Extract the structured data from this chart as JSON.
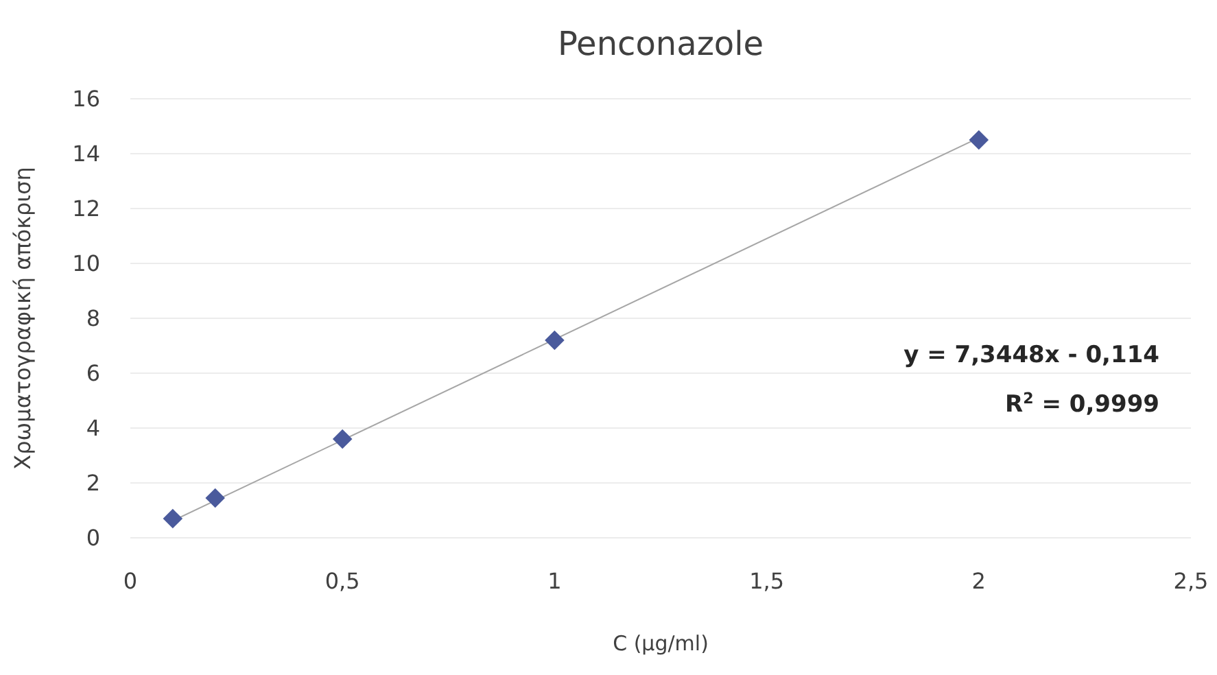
{
  "chart_data": {
    "type": "scatter",
    "title": "Penconazole",
    "xlabel": "C  (μg/ml)",
    "ylabel": "Χρωματογραφική απόκριση",
    "xlim": [
      0,
      2.5
    ],
    "xticks": [
      0,
      {
        "value": 0.5,
        "label": "0,5"
      },
      1,
      {
        "value": 1.5,
        "label": "1,5"
      },
      2,
      {
        "value": 2.5,
        "label": "2,5"
      }
    ],
    "ylim": [
      0,
      16
    ],
    "yticks": [
      0,
      2,
      4,
      6,
      8,
      10,
      12,
      14,
      16
    ],
    "grid": "y",
    "series": [
      {
        "type": "line",
        "color": "#a6a6a6",
        "x": [
          0.1,
          2
        ],
        "values": [
          0.62,
          14.58
        ],
        "marker": "none",
        "line_style": "solid"
      },
      {
        "color": "#4a5a9c",
        "x": [
          0.1,
          0.2,
          0.5,
          1,
          2
        ],
        "values": [
          0.7,
          1.45,
          3.6,
          7.2,
          14.5
        ],
        "marker": "diamond"
      }
    ],
    "annotations": [
      "y = 7,3448x - 0,114",
      "R$^{2}$ = 0,9999"
    ]
  }
}
